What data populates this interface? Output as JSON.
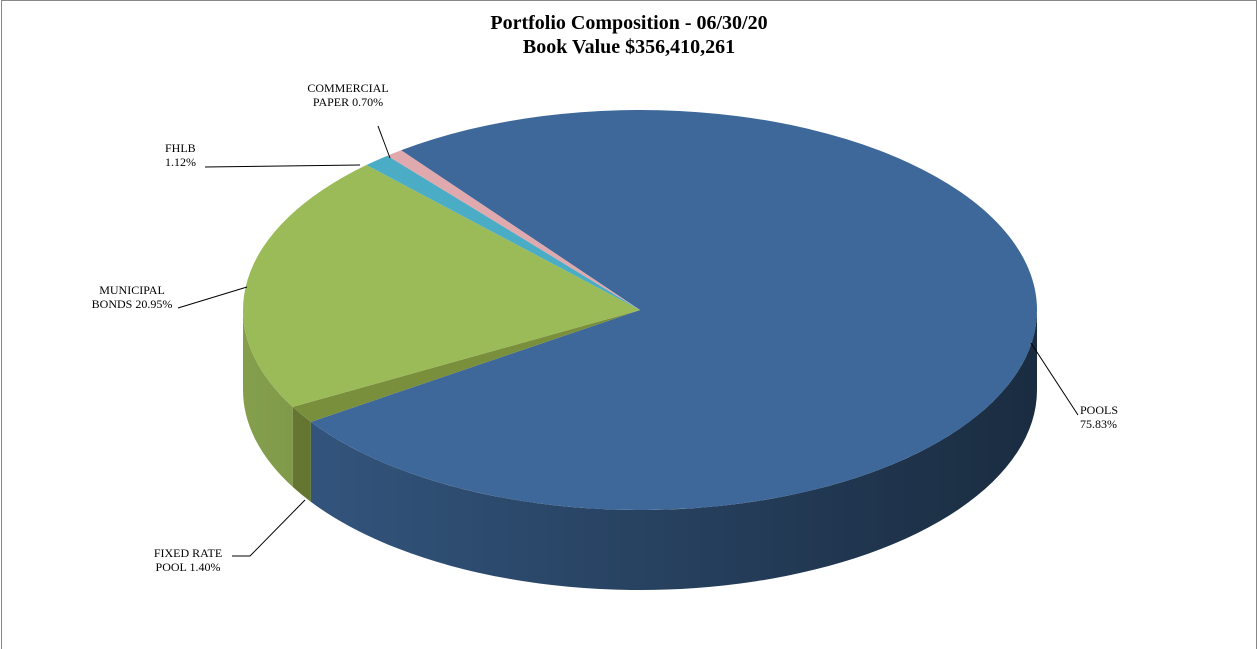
{
  "chart_data": {
    "type": "pie3d",
    "title": "Portfolio Composition - 06/30/20",
    "subtitle": "Book Value $356,410,261",
    "categories": [
      "POOLS",
      "FIXED RATE POOL",
      "MUNICIPAL BONDS",
      "FHLB",
      "COMMERCIAL PAPER"
    ],
    "values": [
      75.83,
      1.4,
      20.95,
      1.12,
      0.7
    ],
    "value_labels": [
      "75.83%",
      "1.40%",
      "20.95%",
      "1.12%",
      "0.70%"
    ],
    "colors": [
      "#3e6899",
      "#7a8f3c",
      "#9bbb59",
      "#4bacc6",
      "#e0a9ae"
    ]
  }
}
